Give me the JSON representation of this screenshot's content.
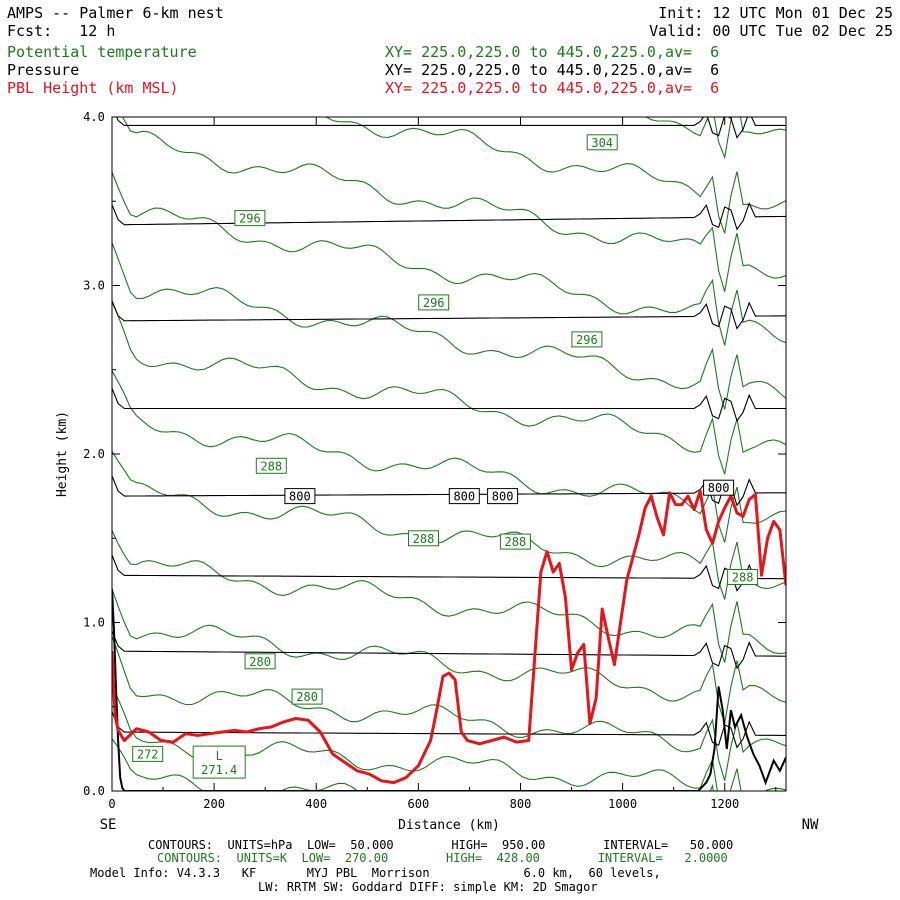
{
  "header": {
    "title": "AMPS -- Palmer 6-km nest",
    "init": "Init: 12 UTC Mon 01 Dec 25",
    "fcst": "Fcst:   12 h",
    "valid": "Valid: 00 UTC Tue 02 Dec 25",
    "fields": [
      {
        "name": "Potential temperature",
        "xy": "XY= 225.0,225.0 to 445.0,225.0,av=  6",
        "color": "#1e7a1e"
      },
      {
        "name": "Pressure",
        "xy": "XY= 225.0,225.0 to 445.0,225.0,av=  6",
        "color": "#000000"
      },
      {
        "name": "PBL Height (km MSL)",
        "xy": "XY= 225.0,225.0 to 445.0,225.0,av=  6",
        "color": "#e8141c"
      }
    ]
  },
  "footer": {
    "line1": "CONTOURS:  UNITS=hPa  LOW=  50.000        HIGH=  950.00        INTERVAL=   50.000",
    "line2": "CONTOURS:  UNITS=K  LOW=  270.00        HIGH=  428.00        INTERVAL=   2.0000",
    "line3": "Model Info: V4.3.3   KF       MYJ PBL  Morrison             6.0 km,  60 levels,",
    "line4": "LW: RRTM SW: Goddard DIFF: simple KM: 2D Smagor"
  },
  "chart_data": {
    "type": "line",
    "xlabel": "Distance (km)",
    "ylabel": "Height (km)",
    "xlim": [
      0,
      1320
    ],
    "ylim": [
      0,
      4.0
    ],
    "x_ticks": [
      0,
      200,
      400,
      600,
      800,
      1000,
      1200
    ],
    "x_tick_labels": [
      "0",
      "200",
      "400",
      "600",
      "800",
      "1000",
      "1200"
    ],
    "y_ticks": [
      0,
      1,
      2,
      3,
      4
    ],
    "y_tick_labels": [
      "0.0",
      "1.0",
      "2.0",
      "3.0",
      "4.0"
    ],
    "left_end_label": "SE",
    "right_end_label": "NW",
    "pbl_height": {
      "name": "PBL Height (km MSL)",
      "color": "#e8141c",
      "x": [
        0,
        6,
        12,
        24,
        48,
        72,
        96,
        120,
        144,
        168,
        192,
        216,
        240,
        264,
        288,
        312,
        336,
        360,
        384,
        408,
        432,
        456,
        480,
        504,
        528,
        552,
        576,
        600,
        624,
        636,
        648,
        660,
        672,
        684,
        696,
        720,
        744,
        768,
        792,
        816,
        840,
        852,
        864,
        876,
        888,
        900,
        912,
        924,
        936,
        948,
        960,
        972,
        984,
        1008,
        1032,
        1044,
        1056,
        1068,
        1080,
        1092,
        1104,
        1116,
        1128,
        1140,
        1152,
        1164,
        1176,
        1188,
        1200,
        1212,
        1224,
        1236,
        1248,
        1260,
        1272,
        1284,
        1296,
        1308,
        1320
      ],
      "y": [
        0.83,
        0.45,
        0.36,
        0.3,
        0.37,
        0.35,
        0.3,
        0.29,
        0.34,
        0.33,
        0.34,
        0.35,
        0.36,
        0.35,
        0.37,
        0.38,
        0.41,
        0.43,
        0.42,
        0.35,
        0.22,
        0.17,
        0.12,
        0.1,
        0.06,
        0.05,
        0.08,
        0.15,
        0.3,
        0.48,
        0.68,
        0.7,
        0.66,
        0.35,
        0.3,
        0.28,
        0.3,
        0.32,
        0.29,
        0.3,
        1.3,
        1.42,
        1.3,
        1.35,
        1.15,
        0.72,
        0.82,
        0.87,
        0.4,
        0.55,
        1.08,
        0.91,
        0.75,
        1.25,
        1.52,
        1.68,
        1.75,
        1.62,
        1.52,
        1.77,
        1.7,
        1.7,
        1.75,
        1.67,
        1.78,
        1.55,
        1.47,
        1.6,
        1.68,
        1.75,
        1.65,
        1.63,
        1.73,
        1.76,
        1.28,
        1.5,
        1.6,
        1.55,
        1.22
      ]
    },
    "pressure_contours": [
      {
        "label": "800",
        "base_km": 1.75,
        "slope_km": 0.02
      },
      {
        "label": "",
        "base_km": 0.35,
        "slope_km": -0.02
      },
      {
        "label": "",
        "base_km": 0.83,
        "slope_km": -0.03
      },
      {
        "label": "",
        "base_km": 1.28,
        "slope_km": -0.02
      },
      {
        "label": "",
        "base_km": 2.27,
        "slope_km": 0.0
      },
      {
        "label": "",
        "base_km": 2.79,
        "slope_km": 0.03
      },
      {
        "label": "",
        "base_km": 3.36,
        "slope_km": 0.05
      },
      {
        "label": "",
        "base_km": 3.95,
        "slope_km": 0.0
      }
    ],
    "pressure_labels": [
      {
        "text": "800",
        "x": 368,
        "y": 1.75
      },
      {
        "text": "800",
        "x": 690,
        "y": 1.75
      },
      {
        "text": "800",
        "x": 765,
        "y": 1.75
      },
      {
        "text": "800",
        "x": 1188,
        "y": 1.8
      }
    ],
    "theta_contours": [
      {
        "base_km": 0.06,
        "drop_km": 0.25
      },
      {
        "base_km": 0.3,
        "drop_km": 0.3
      },
      {
        "base_km": 0.62,
        "drop_km": 0.38
      },
      {
        "base_km": 0.98,
        "drop_km": 0.45
      },
      {
        "base_km": 1.36,
        "drop_km": 0.5
      },
      {
        "base_km": 1.78,
        "drop_km": 0.52
      },
      {
        "base_km": 2.2,
        "drop_km": 0.58
      },
      {
        "base_km": 2.62,
        "drop_km": 0.62
      },
      {
        "base_km": 3.02,
        "drop_km": 0.68
      },
      {
        "base_km": 3.45,
        "drop_km": 0.72
      },
      {
        "base_km": 3.88,
        "drop_km": 0.78
      },
      {
        "base_km": 4.28,
        "drop_km": 0.82
      },
      {
        "base_km": 4.7,
        "drop_km": 0.85
      }
    ],
    "theta_labels": [
      {
        "text": "304",
        "x": 960,
        "y": 3.85
      },
      {
        "text": "296",
        "x": 270,
        "y": 3.4
      },
      {
        "text": "296",
        "x": 630,
        "y": 2.9
      },
      {
        "text": "296",
        "x": 930,
        "y": 2.68
      },
      {
        "text": "288",
        "x": 312,
        "y": 1.93
      },
      {
        "text": "288",
        "x": 610,
        "y": 1.5
      },
      {
        "text": "288",
        "x": 790,
        "y": 1.48
      },
      {
        "text": "288",
        "x": 1235,
        "y": 1.27
      },
      {
        "text": "280",
        "x": 290,
        "y": 0.77
      },
      {
        "text": "280",
        "x": 382,
        "y": 0.56
      },
      {
        "text": "272",
        "x": 70,
        "y": 0.22
      }
    ],
    "low_marker": {
      "letter": "L",
      "value": "271.4",
      "x": 210,
      "y": 0.1
    },
    "terrain": {
      "x": [
        0,
        4,
        8,
        12,
        16,
        20,
        24,
        1148,
        1164,
        1172,
        1180,
        1188,
        1196,
        1204,
        1212,
        1220,
        1232,
        1244,
        1256,
        1268,
        1280,
        1296,
        1308,
        1320
      ],
      "y": [
        1.2,
        0.95,
        0.6,
        0.3,
        0.08,
        0.02,
        0.0,
        0.0,
        0.05,
        0.1,
        0.25,
        0.62,
        0.48,
        0.25,
        0.48,
        0.38,
        0.45,
        0.32,
        0.22,
        0.15,
        0.05,
        0.18,
        0.12,
        0.2
      ]
    }
  }
}
